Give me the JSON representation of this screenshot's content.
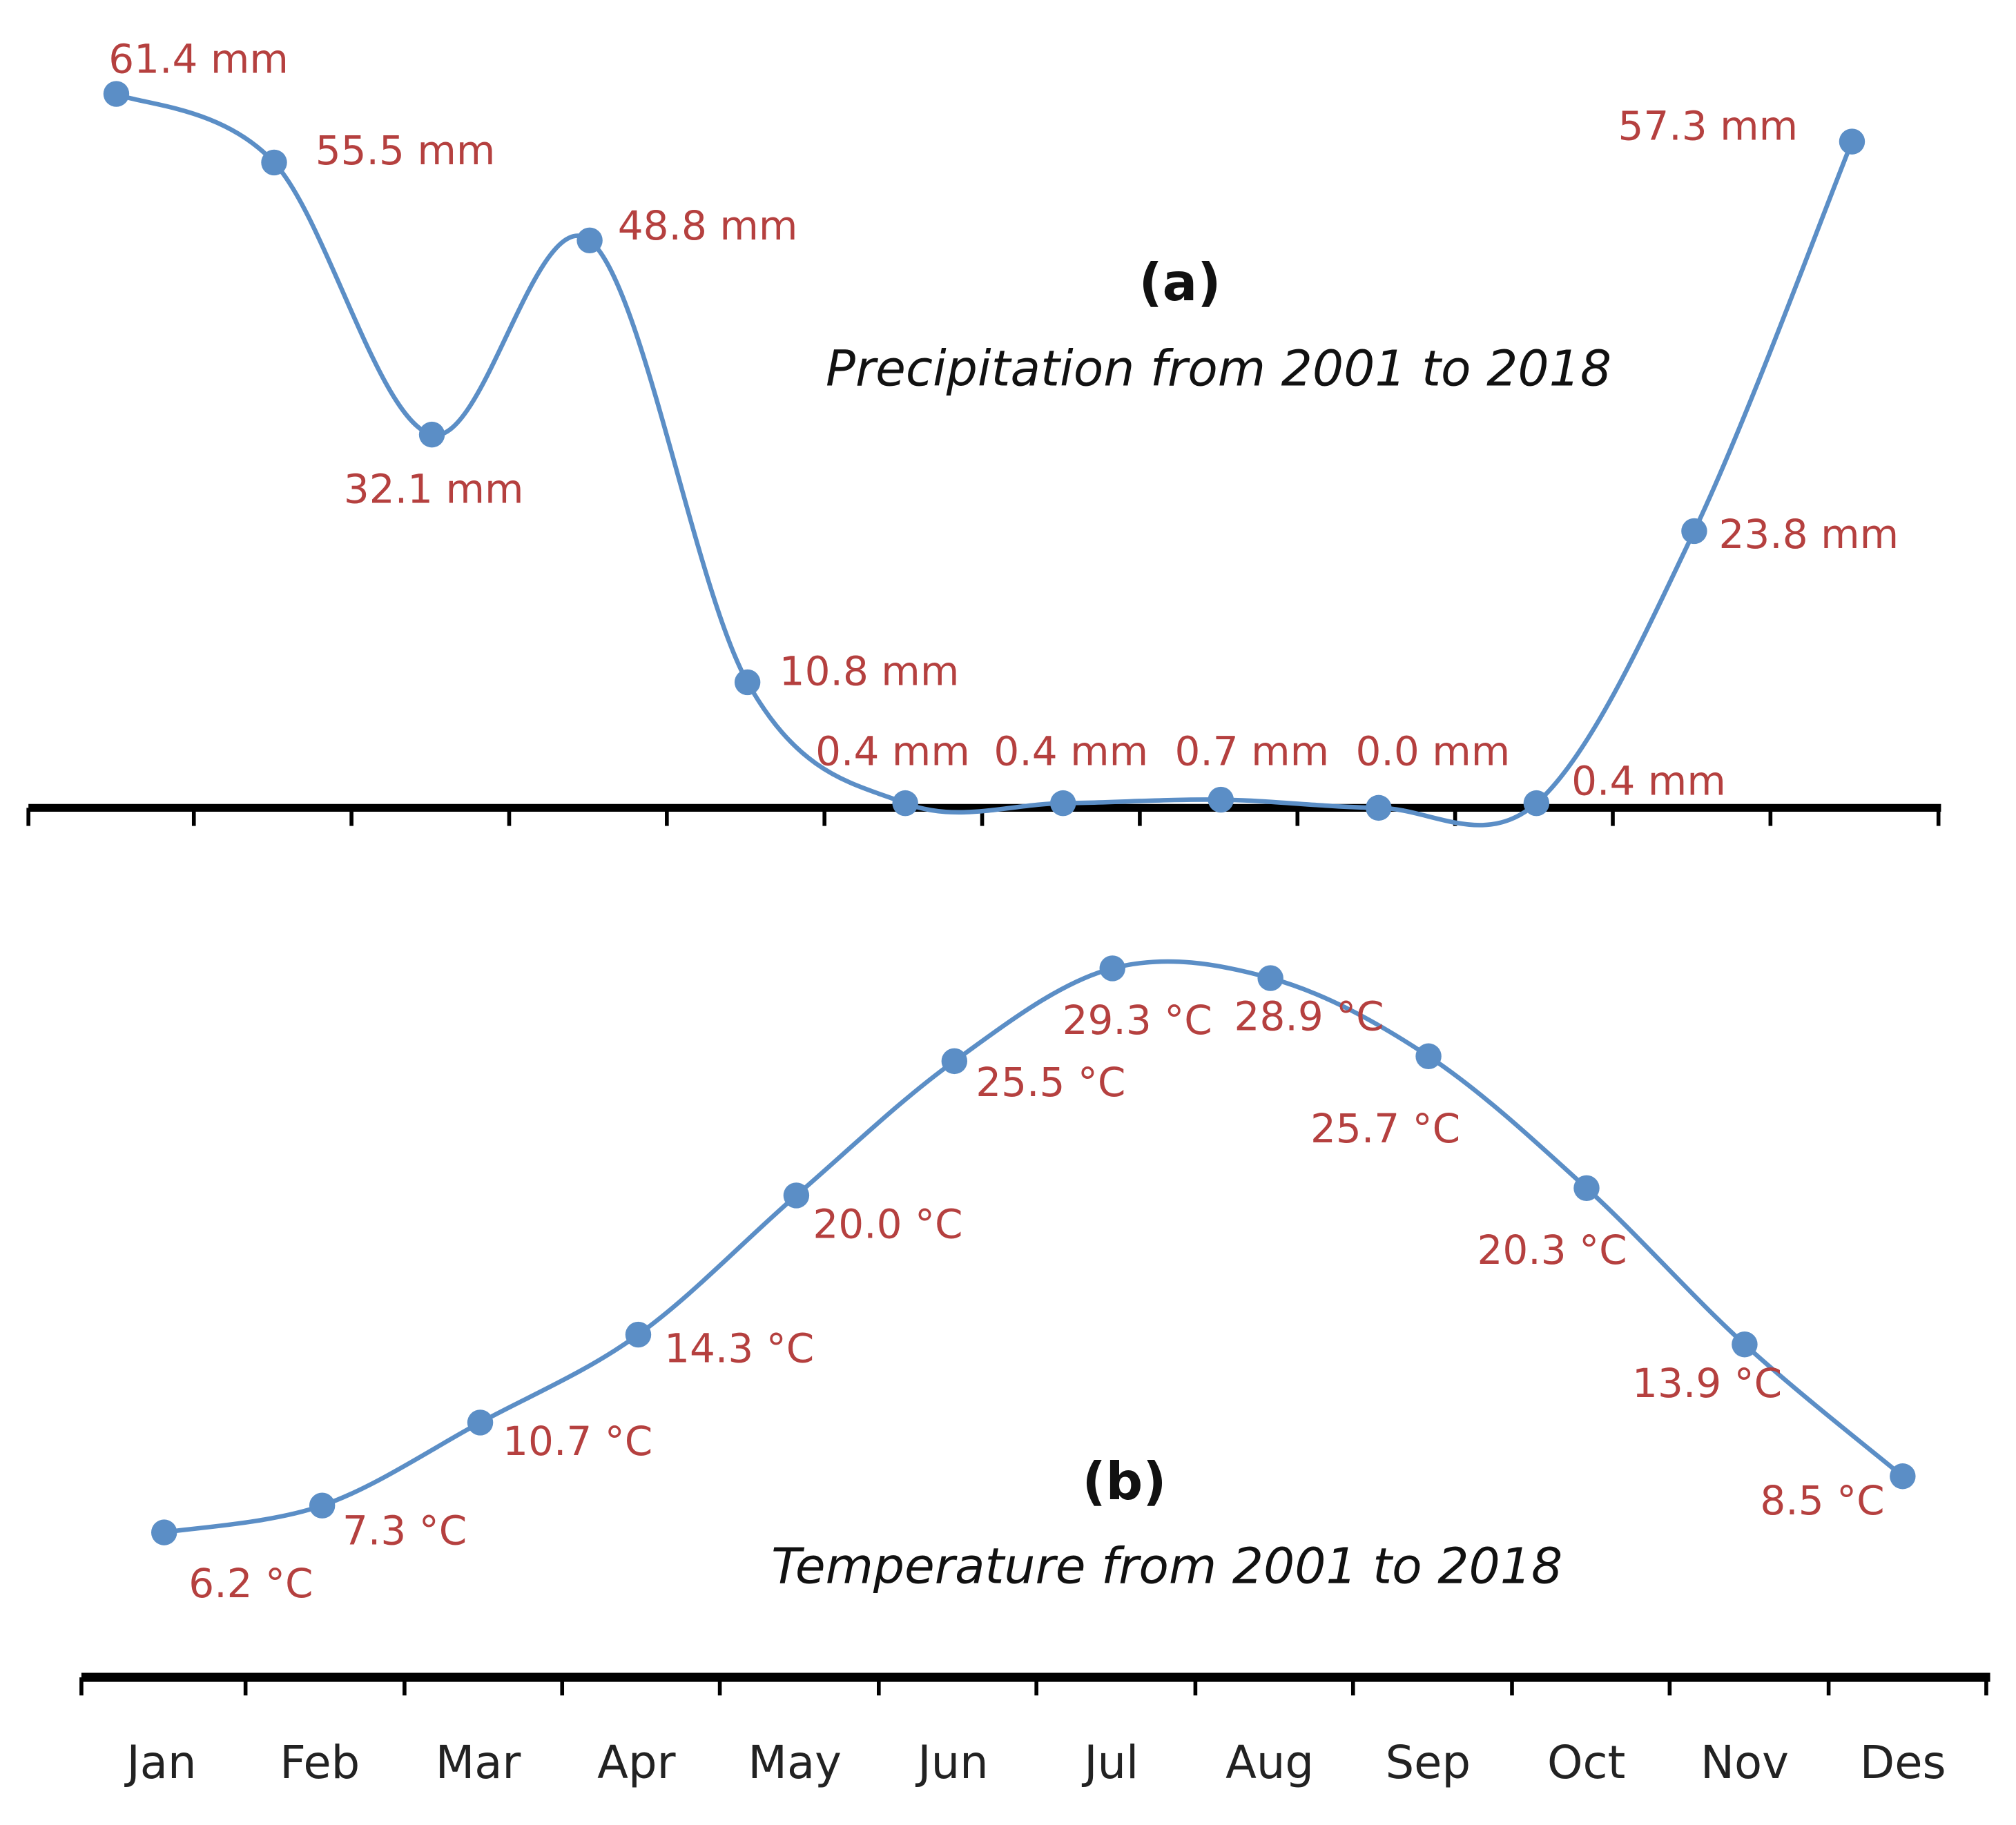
{
  "chart_data": [
    {
      "type": "line",
      "panel": "(a)",
      "title": "Precipitation from 2001 to 2018",
      "categories": [
        "Jan",
        "Feb",
        "Mar",
        "Apr",
        "May",
        "Jun",
        "Jul",
        "Aug",
        "Sep",
        "Oct",
        "Nov",
        "Des"
      ],
      "values": [
        61.4,
        55.5,
        32.1,
        48.8,
        10.8,
        0.4,
        0.4,
        0.7,
        0.0,
        0.4,
        23.8,
        57.3
      ],
      "labels": [
        "61.4 mm",
        "55.5 mm",
        "32.1 mm",
        "48.8 mm",
        "10.8 mm",
        "0.4 mm",
        "0.4 mm",
        "0.7 mm",
        "0.0 mm",
        "0.4 mm",
        "23.8 mm",
        "57.3 mm"
      ],
      "unit": "mm",
      "smooth": true,
      "grid": false,
      "colors": {
        "line": "#5b8ec6",
        "label": "#b5403f"
      }
    },
    {
      "type": "line",
      "panel": "(b)",
      "title": "Temperature from 2001 to 2018",
      "categories": [
        "Jan",
        "Feb",
        "Mar",
        "Apr",
        "May",
        "Jun",
        "Jul",
        "Aug",
        "Sep",
        "Oct",
        "Nov",
        "Des"
      ],
      "values": [
        6.2,
        7.3,
        10.7,
        14.3,
        20.0,
        25.5,
        29.3,
        28.9,
        25.7,
        20.3,
        13.9,
        8.5
      ],
      "labels": [
        "6.2 °C",
        "7.3 °C",
        "10.7 °C",
        "14.3 °C",
        "20.0 °C",
        "25.5 °C",
        "29.3 °C",
        "28.9 °C",
        "25.7 °C",
        "20.3 °C",
        "13.9 °C",
        "8.5 °C"
      ],
      "unit": "°C",
      "smooth": true,
      "grid": false,
      "colors": {
        "line": "#5b8ec6",
        "label": "#b5403f"
      }
    }
  ]
}
